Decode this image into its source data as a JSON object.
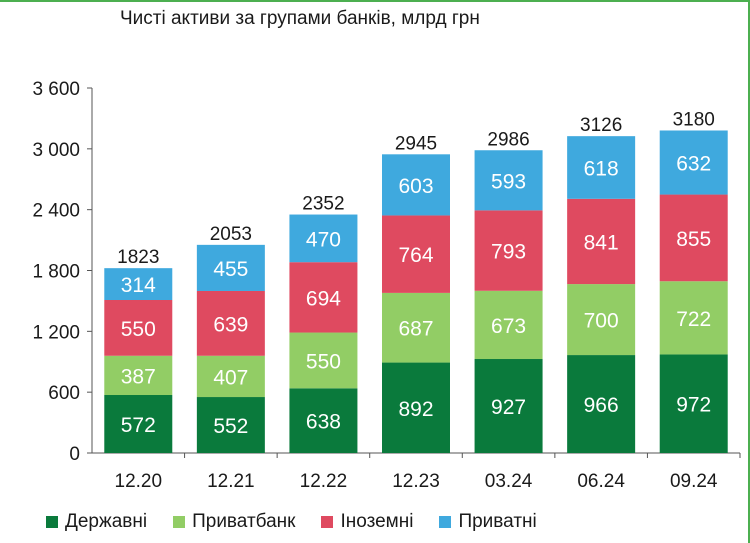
{
  "colors": {
    "Державні": "#0a7a3c",
    "Приватбанк": "#92cd65",
    "Іноземні": "#df4a60",
    "Приватні": "#3fa9de"
  },
  "chart_data": {
    "type": "bar",
    "stacked": true,
    "title": "Чисті активи за групами банків, млрд грн",
    "xlabel": "",
    "ylabel": "",
    "categories": [
      "12.20",
      "12.21",
      "12.22",
      "12.23",
      "03.24",
      "06.24",
      "09.24"
    ],
    "ylim": [
      0,
      3600
    ],
    "yticks": [
      0,
      600,
      1200,
      1800,
      2400,
      3000,
      3600
    ],
    "ytick_labels": [
      "0",
      "600",
      "1 200",
      "1 800",
      "2 400",
      "3 000",
      "3 600"
    ],
    "series": [
      {
        "name": "Державні",
        "values": [
          572,
          552,
          638,
          892,
          927,
          966,
          972
        ]
      },
      {
        "name": "Приватбанк",
        "values": [
          387,
          407,
          550,
          687,
          673,
          700,
          722
        ]
      },
      {
        "name": "Іноземні",
        "values": [
          550,
          639,
          694,
          764,
          793,
          841,
          855
        ]
      },
      {
        "name": "Приватні",
        "values": [
          314,
          455,
          470,
          603,
          593,
          618,
          632
        ]
      }
    ],
    "totals": [
      1823,
      2053,
      2352,
      2945,
      2986,
      3126,
      3180
    ],
    "legend_position": "bottom"
  }
}
